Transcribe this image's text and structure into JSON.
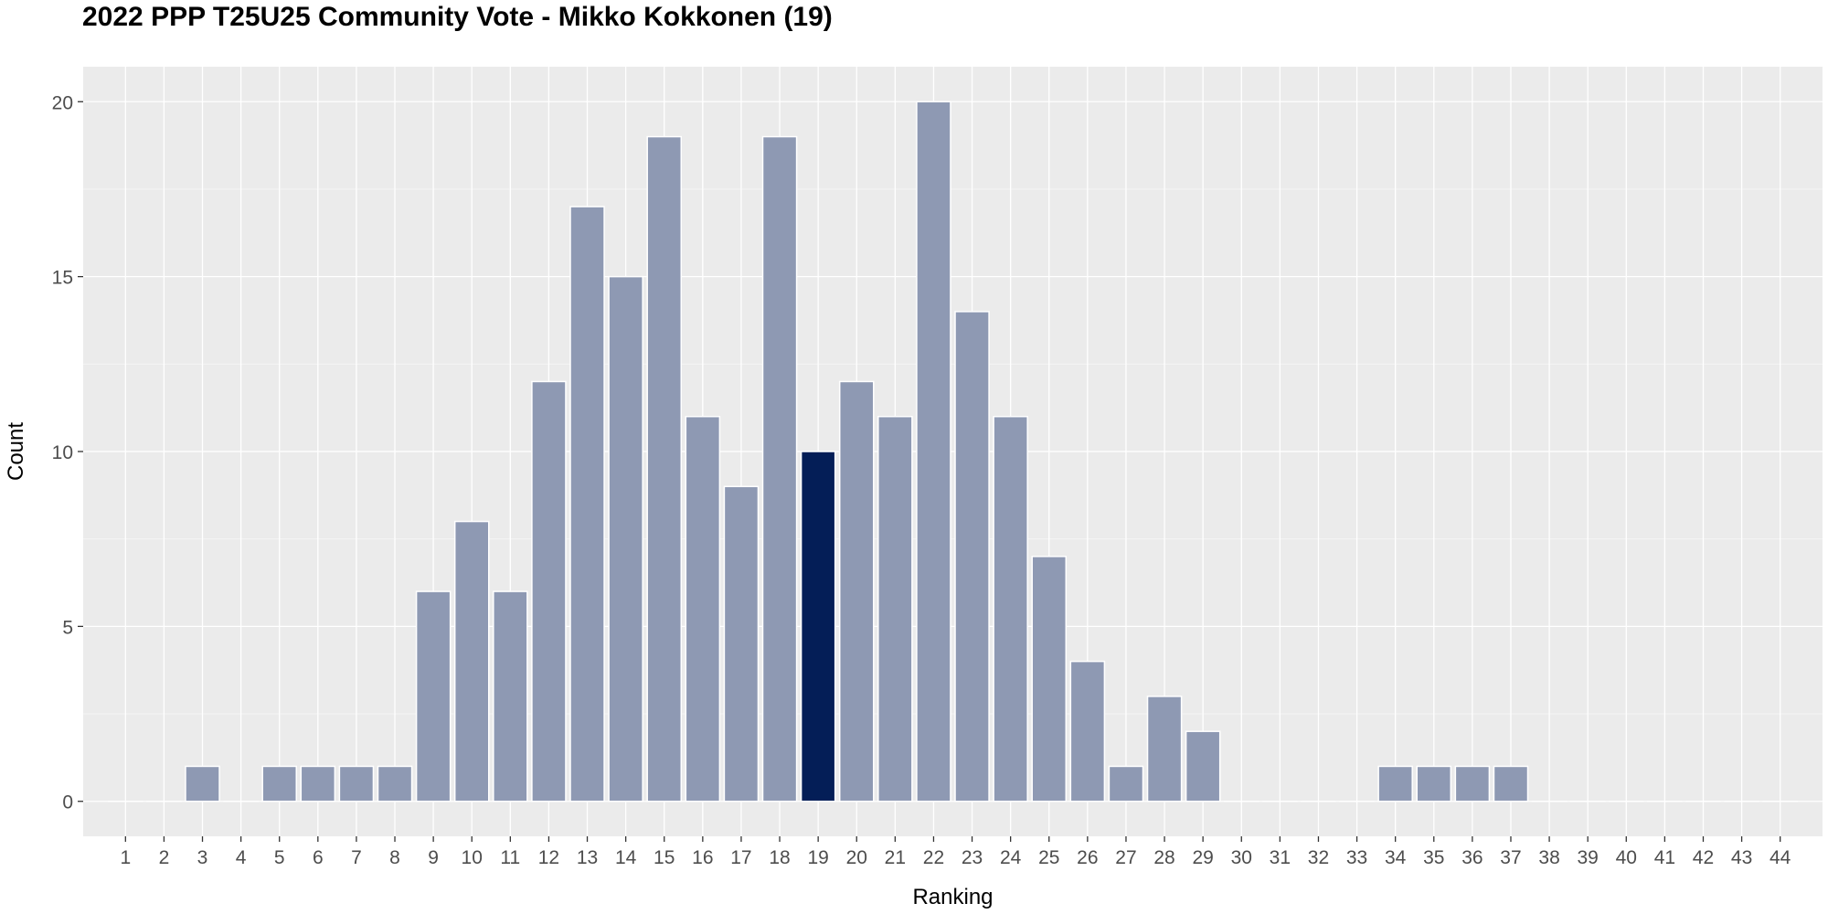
{
  "chart_data": {
    "type": "bar",
    "title": "2022 PPP T25U25 Community Vote - Mikko Kokkonen (19)",
    "xlabel": "Ranking",
    "ylabel": "Count",
    "categories": [
      "1",
      "2",
      "3",
      "4",
      "5",
      "6",
      "7",
      "8",
      "9",
      "10",
      "11",
      "12",
      "13",
      "14",
      "15",
      "16",
      "17",
      "18",
      "19",
      "20",
      "21",
      "22",
      "23",
      "24",
      "25",
      "26",
      "27",
      "28",
      "29",
      "30",
      "31",
      "32",
      "33",
      "34",
      "35",
      "36",
      "37",
      "38",
      "39",
      "40",
      "41",
      "42",
      "43",
      "44"
    ],
    "values": [
      0,
      0,
      1,
      0,
      1,
      1,
      1,
      1,
      6,
      8,
      6,
      12,
      17,
      15,
      19,
      11,
      9,
      19,
      10,
      12,
      11,
      20,
      14,
      11,
      7,
      4,
      1,
      3,
      2,
      0,
      0,
      0,
      0,
      1,
      1,
      1,
      1,
      0,
      0,
      0,
      0,
      0,
      0,
      0
    ],
    "highlight_category": "19",
    "yticks": [
      0,
      5,
      10,
      15,
      20
    ],
    "ylim": [
      -1,
      21
    ],
    "grid": true,
    "colors": {
      "bar": "#8e99b3",
      "highlight": "#041e57",
      "panel": "#ebebeb",
      "grid_major": "#ffffff"
    }
  }
}
